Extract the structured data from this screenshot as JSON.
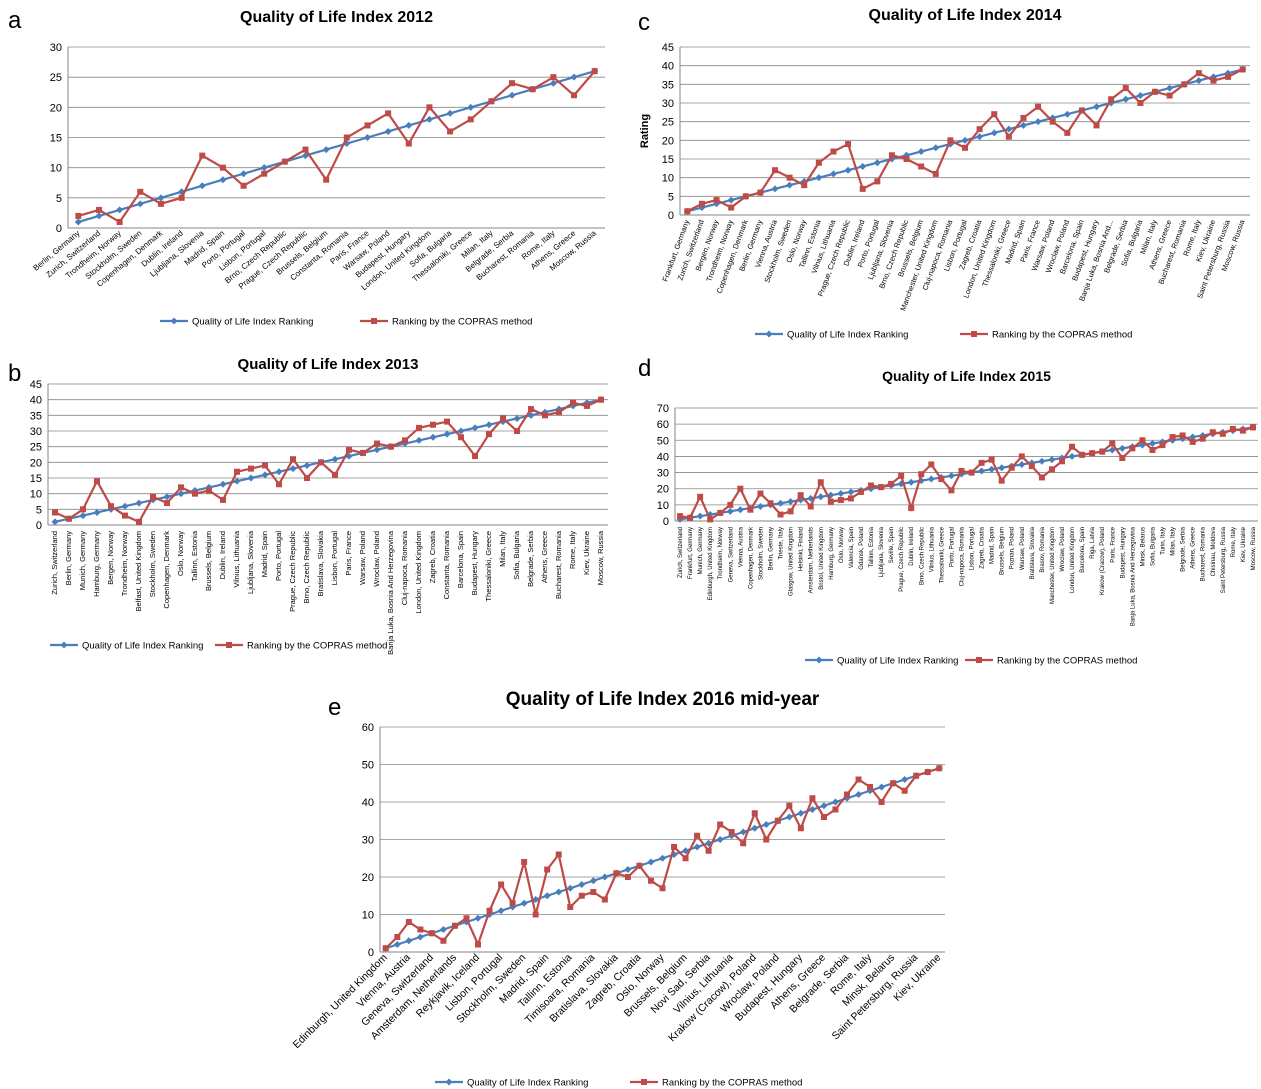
{
  "chart_data": [
    {
      "type": "line",
      "panel_label": "a",
      "title": "Quality of Life Index 2012",
      "categories": [
        "Berlin, Germany",
        "Zurich, Switzerland",
        "Trondheim, Norway",
        "Stockholm, Sweden",
        "Copenhagen, Denmark",
        "Dublin, Ireland",
        "Ljubljana, Slovenia",
        "Madrid, Spain",
        "Porto, Portugal",
        "Lisbon, Portugal",
        "Brno, Czech Republic",
        "Prague, Czech Republic",
        "Brussels, Belgium",
        "Constanta, Romania",
        "Paris, France",
        "Warsaw, Poland",
        "Budapest, Hungary",
        "London, United Kingdom",
        "Sofia, Bulgaria",
        "Thessaloniki, Greece",
        "Milan, Italy",
        "Belgrade, Serbia",
        "Bucharest, Romania",
        "Rome, Italy",
        "Athens, Greece",
        "Moscow, Russia"
      ],
      "series": [
        {
          "name": "Quality of Life Index Ranking",
          "color": "#4a7ebb",
          "values": [
            1,
            2,
            3,
            4,
            5,
            6,
            7,
            8,
            9,
            10,
            11,
            12,
            13,
            14,
            15,
            16,
            17,
            18,
            19,
            20,
            21,
            22,
            23,
            24,
            25,
            26
          ]
        },
        {
          "name": "Ranking by the COPRAS method",
          "color": "#be4b48",
          "values": [
            2,
            3,
            1,
            6,
            4,
            5,
            12,
            10,
            7,
            9,
            11,
            13,
            8,
            15,
            17,
            19,
            14,
            20,
            16,
            18,
            21,
            24,
            23,
            25,
            22,
            26
          ]
        }
      ],
      "ylim": [
        0,
        30
      ],
      "yticks": [
        0,
        5,
        10,
        15,
        20,
        25,
        30
      ],
      "grid": true
    },
    {
      "type": "line",
      "panel_label": "b",
      "title": "Quality of Life Index 2013",
      "categories": [
        "Zurich, Switzerland",
        "Berlin, Germany",
        "Munich, Germany",
        "Hamburg, Germany",
        "Bergen, Norway",
        "Trondheim, Norway",
        "Belfast, United Kingdom",
        "Stockholm, Sweden",
        "Copenhagen, Denmark",
        "Oslo, Norway",
        "Tallinn, Estonia",
        "Brussels, Belgium",
        "Dublin, Ireland",
        "Vilnius, Lithuania",
        "Ljubljana, Slovenia",
        "Madrid, Spain",
        "Porto, Portugal",
        "Prague, Czech Republic",
        "Brno, Czech Republic",
        "Bratislava, Slovakia",
        "Lisbon, Portugal",
        "Paris, France",
        "Warsaw, Poland",
        "Wroclaw, Poland",
        "Banja Luka, Bosnia And Herzegovina",
        "Cluj-napoca, Romania",
        "London, United Kingdom",
        "Zagreb, Croatia",
        "Constanta, Romania",
        "Barcelona, Spain",
        "Budapest, Hungary",
        "Thessaloniki, Greece",
        "Milan, Italy",
        "Sofia, Bulgaria",
        "Belgrade, Serbia",
        "Athens, Greece",
        "Bucharest, Romania",
        "Rome, Italy",
        "Kiev, Ukraine",
        "Moscow, Russia"
      ],
      "series": [
        {
          "name": "Quality of Life Index Ranking",
          "color": "#4a7ebb",
          "values": [
            1,
            2,
            3,
            4,
            5,
            6,
            7,
            8,
            9,
            10,
            11,
            12,
            13,
            14,
            15,
            16,
            17,
            18,
            19,
            20,
            21,
            22,
            23,
            24,
            25,
            26,
            27,
            28,
            29,
            30,
            31,
            32,
            33,
            34,
            35,
            36,
            37,
            38,
            39,
            40
          ]
        },
        {
          "name": "Ranking by the COPRAS method",
          "color": "#be4b48",
          "values": [
            4,
            2,
            5,
            14,
            6,
            3,
            1,
            9,
            7,
            12,
            10,
            11,
            8,
            17,
            18,
            19,
            13,
            21,
            15,
            20,
            16,
            24,
            23,
            26,
            25,
            27,
            31,
            32,
            33,
            28,
            22,
            29,
            34,
            30,
            37,
            35,
            36,
            39,
            38,
            40
          ]
        }
      ],
      "ylim": [
        0,
        45
      ],
      "yticks": [
        0,
        5,
        10,
        15,
        20,
        25,
        30,
        35,
        40,
        45
      ],
      "grid": true
    },
    {
      "type": "line",
      "panel_label": "c",
      "title": "Quality of Life Index 2014",
      "y_label": "Rating",
      "categories": [
        "Frankfurt, Germany",
        "Zurich, Switzerland",
        "Bergen, Norway",
        "Trondheim, Norway",
        "Copenhagen, Denmark",
        "Berlin, Germany",
        "Vienna, Austria",
        "Stockholm, Sweden",
        "Oslo, Norway",
        "Tallinn, Estonia",
        "Vilnius, Lithuania",
        "Prague, Czech Republic",
        "Dublin, Ireland",
        "Porto, Portugal",
        "Ljubljana, Slovenia",
        "Brno, Czech Republic",
        "Brussels, Belgium",
        "Manchester, United Kingdom",
        "Cluj-napoca, Romania",
        "Lisbon, Portugal",
        "Zagreb, Croatia",
        "London, United Kingdom",
        "Thessaloniki, Greece",
        "Madrid, Spain",
        "Paris, France",
        "Warsaw, Poland",
        "Wroclaw, Poland",
        "Barcelona, Spain",
        "Budapest, Hungary",
        "Banja Luka, Bosnia And...",
        "Belgrade, Serbia",
        "Sofia, Bulgaria",
        "Milan, Italy",
        "Athens, Greece",
        "Bucharest, Romania",
        "Rome, Italy",
        "Kiev, Ukraine",
        "Saint Petersburg, Russia",
        "Moscow, Russia"
      ],
      "series": [
        {
          "name": "Quality of Life Index Ranking",
          "color": "#4a7ebb",
          "values": [
            1,
            2,
            3,
            4,
            5,
            6,
            7,
            8,
            9,
            10,
            11,
            12,
            13,
            14,
            15,
            16,
            17,
            18,
            19,
            20,
            21,
            22,
            23,
            24,
            25,
            26,
            27,
            28,
            29,
            30,
            31,
            32,
            33,
            34,
            35,
            36,
            37,
            38,
            39
          ]
        },
        {
          "name": "Ranking by the COPRAS method",
          "color": "#be4b48",
          "values": [
            1,
            3,
            4,
            2,
            5,
            6,
            12,
            10,
            8,
            14,
            17,
            19,
            7,
            9,
            16,
            15,
            13,
            11,
            20,
            18,
            23,
            27,
            21,
            26,
            29,
            25,
            22,
            28,
            24,
            31,
            34,
            30,
            33,
            32,
            35,
            38,
            36,
            37,
            39
          ]
        }
      ],
      "ylim": [
        0,
        45
      ],
      "yticks": [
        0,
        5,
        10,
        15,
        20,
        25,
        30,
        35,
        40,
        45
      ],
      "grid": true
    },
    {
      "type": "line",
      "panel_label": "d",
      "title": "Quality of Life Index 2015",
      "categories": [
        "Zurich, Switzerland",
        "Frankfurt, Germany",
        "Munich, Germany",
        "Edinburgh, United Kingdom",
        "Trondheim, Norway",
        "Geneva, Switzerland",
        "Vienna, Austria",
        "Copenhagen, Denmark",
        "Stockholm, Sweden",
        "Berlin, Germany",
        "Trieste, Italy",
        "Glasgow, United Kingdom",
        "Helsinki, Finland",
        "Amsterdam, Netherlands",
        "Bristol, United Kingdom",
        "Hamburg, Germany",
        "Oslo, Norway",
        "Valencia, Spain",
        "Gdansk, Poland",
        "Tallinn, Estonia",
        "Ljubljana, Slovenia",
        "Seville, Spain",
        "Prague, Czech Republic",
        "Dublin, Ireland",
        "Brno, Czech Republic",
        "Vilnius, Lithuania",
        "Thessaloniki, Greece",
        "Porto, Portugal",
        "Cluj-napoca, Romania",
        "Lisbon, Portugal",
        "Zagreb, Croatia",
        "Madrid, Spain",
        "Brussels, Belgium",
        "Poznan, Poland",
        "Warsaw, Poland",
        "Bratislava, Slovakia",
        "Brasov, Romania",
        "Manchester, United Kingdom",
        "Wroclaw, Poland",
        "London, United Kingdom",
        "Barcelona, Spain",
        "Riga, Latvia",
        "Krakow (Cracow), Poland",
        "Paris, France",
        "Budapest, Hungary",
        "Banja Luka, Bosnia And Herzegovina",
        "Minsk, Belarus",
        "Sofia, Bulgaria",
        "Turin, Italy",
        "Milan, Italy",
        "Belgrade, Serbia",
        "Athens, Greece",
        "Bucharest, Romania",
        "Chisinau, Moldova",
        "Saint Petersburg, Russia",
        "Rome, Italy",
        "Kiev, Ukraine",
        "Moscow, Russia"
      ],
      "series": [
        {
          "name": "Quality of Life Index Ranking",
          "color": "#4a7ebb",
          "values": [
            1,
            2,
            3,
            4,
            5,
            6,
            7,
            8,
            9,
            10,
            11,
            12,
            13,
            14,
            15,
            16,
            17,
            18,
            19,
            20,
            21,
            22,
            23,
            24,
            25,
            26,
            27,
            28,
            29,
            30,
            31,
            32,
            33,
            34,
            35,
            36,
            37,
            38,
            39,
            40,
            41,
            42,
            43,
            44,
            45,
            46,
            47,
            48,
            49,
            50,
            51,
            52,
            53,
            54,
            55,
            56,
            57,
            58
          ]
        },
        {
          "name": "Ranking by the COPRAS method",
          "color": "#be4b48",
          "values": [
            3,
            2,
            15,
            1,
            5,
            10,
            20,
            7,
            17,
            11,
            4,
            6,
            16,
            9,
            24,
            12,
            13,
            14,
            18,
            22,
            21,
            23,
            28,
            8,
            29,
            35,
            26,
            19,
            31,
            30,
            36,
            38,
            25,
            33,
            40,
            34,
            27,
            32,
            37,
            46,
            41,
            42,
            43,
            48,
            39,
            45,
            50,
            44,
            47,
            52,
            53,
            49,
            51,
            55,
            54,
            57,
            56,
            58
          ]
        }
      ],
      "ylim": [
        0,
        70
      ],
      "yticks": [
        0,
        10,
        20,
        30,
        40,
        50,
        60,
        70
      ],
      "grid": true
    },
    {
      "type": "line",
      "panel_label": "e",
      "title": "Quality of Life Index 2016 mid-year",
      "categories": [
        "Edinburgh, United Kingdom",
        null,
        "Vienna, Austria",
        null,
        "Geneva, Switzerland",
        null,
        "Amsterdam, Netherlands",
        null,
        "Reykjavik, Iceland",
        null,
        "Lisbon, Portugal",
        null,
        "Stockholm, Sweden",
        null,
        "Madrid, Spain",
        null,
        "Tallinn, Estonia",
        null,
        "Timisoara, Romania",
        null,
        "Bratislava, Slovakia",
        null,
        "Zagreb, Croatia",
        null,
        "Oslo, Norway",
        null,
        "Brussels, Belgium",
        null,
        "Novi Sad, Serbia",
        null,
        "Vilnius, Lithuania",
        null,
        "Krakow (Cracow), Poland",
        null,
        "Wroclaw, Poland",
        null,
        "Budapest, Hungary",
        null,
        "Athens, Greece",
        null,
        "Belgrade, Serbia",
        null,
        "Rome, Italy",
        null,
        "Minsk, Belarus",
        null,
        "Saint Petersburg, Russia",
        null,
        "Kiev, Ukraine"
      ],
      "series": [
        {
          "name": "Quality of Life Index Ranking",
          "color": "#4a7ebb",
          "values": [
            1,
            2,
            3,
            4,
            5,
            6,
            7,
            8,
            9,
            10,
            11,
            12,
            13,
            14,
            15,
            16,
            17,
            18,
            19,
            20,
            21,
            22,
            23,
            24,
            25,
            26,
            27,
            28,
            29,
            30,
            31,
            32,
            33,
            34,
            35,
            36,
            37,
            38,
            39,
            40,
            41,
            42,
            43,
            44,
            45,
            46,
            47,
            48,
            49
          ]
        },
        {
          "name": "Ranking by the COPRAS method",
          "color": "#be4b48",
          "values": [
            1,
            4,
            8,
            6,
            5,
            3,
            7,
            9,
            2,
            11,
            18,
            13,
            24,
            10,
            22,
            26,
            12,
            15,
            16,
            14,
            21,
            20,
            23,
            19,
            17,
            28,
            25,
            31,
            27,
            34,
            32,
            29,
            37,
            30,
            35,
            39,
            33,
            41,
            36,
            38,
            42,
            46,
            44,
            40,
            45,
            43,
            47,
            48,
            49
          ]
        }
      ],
      "ylim": [
        0,
        60
      ],
      "yticks": [
        0,
        10,
        20,
        30,
        40,
        50,
        60
      ],
      "grid": true
    }
  ]
}
